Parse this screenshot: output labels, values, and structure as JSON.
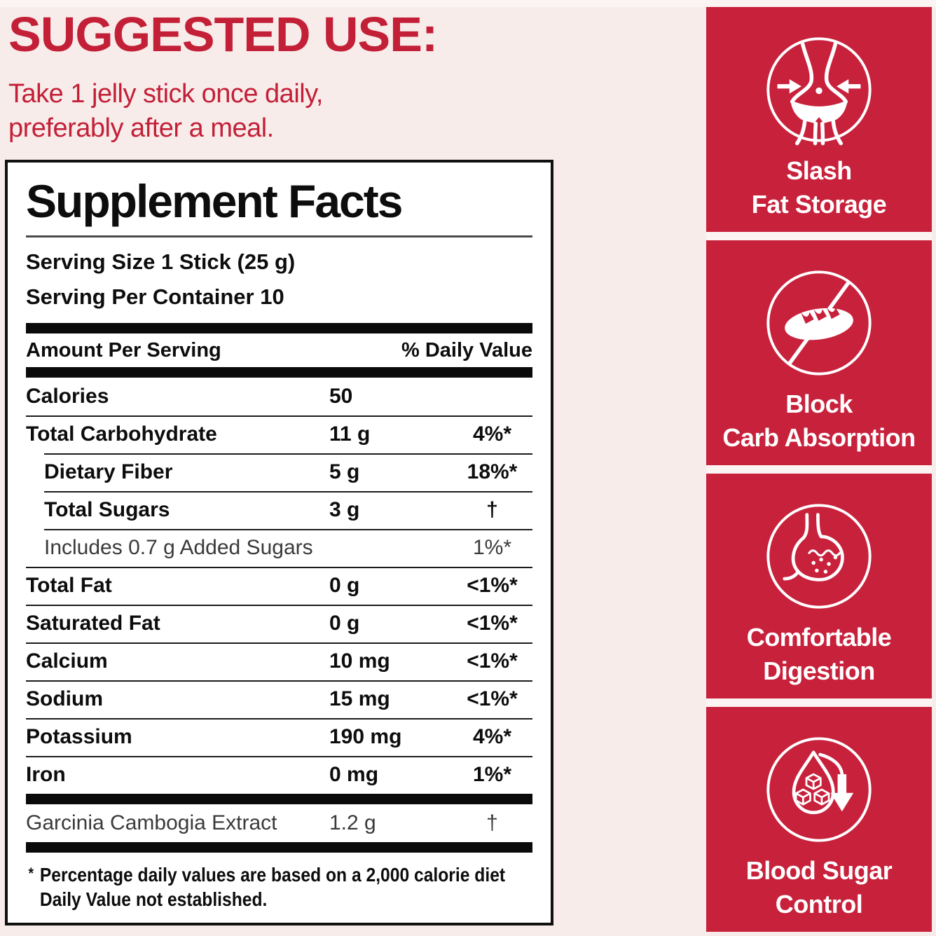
{
  "colors": {
    "badge_red": "#C8213C",
    "text_red": "#C32038",
    "page_pink": "#F8ECEA",
    "gap_white": "#FBF4F2"
  },
  "suggested_use": {
    "heading": "SUGGESTED USE:",
    "body_line1": "Take 1 jelly stick once daily,",
    "body_line2": "preferably after a meal."
  },
  "supplement_facts": {
    "title": "Supplement Facts",
    "serving_size": "Serving Size 1 Stick (25 g)",
    "servings_per_container": "Serving Per Container 10",
    "header": {
      "amount": "Amount Per Serving",
      "daily_value": "% Daily Value"
    },
    "rows": [
      {
        "name": "Calories",
        "amount": "50",
        "dv": ""
      },
      {
        "name": "Total Carbohydrate",
        "amount": "11 g",
        "dv": "4%*"
      },
      {
        "name": "Dietary Fiber",
        "amount": "5 g",
        "dv": "18%*",
        "indent": true
      },
      {
        "name": "Total Sugars",
        "amount": "3 g",
        "dv": "†",
        "indent": true
      },
      {
        "name": "Includes 0.7 g Added Sugars",
        "amount": "",
        "dv": "1%*",
        "indent": true,
        "light": true
      },
      {
        "name": "Total Fat",
        "amount": "0 g",
        "dv": "<1%*"
      },
      {
        "name": "Saturated Fat",
        "amount": "0 g",
        "dv": "<1%*"
      },
      {
        "name": "Calcium",
        "amount": "10 mg",
        "dv": "<1%*"
      },
      {
        "name": "Sodium",
        "amount": "15 mg",
        "dv": "<1%*"
      },
      {
        "name": "Potassium",
        "amount": "190 mg",
        "dv": "4%*"
      },
      {
        "name": "Iron",
        "amount": "0 mg",
        "dv": "1%*"
      }
    ],
    "extra_row": {
      "name": "Garcinia Cambogia Extract",
      "amount": "1.2 g",
      "dv": "†"
    },
    "footnote_marker": "*",
    "footnote_line1": "Percentage daily values are based on a 2,000 calorie diet",
    "footnote_line2": "Daily Value not established."
  },
  "benefits": [
    {
      "icon": "slim-waist-icon",
      "line1": "Slash",
      "line2": "Fat Storage"
    },
    {
      "icon": "no-bread-icon",
      "line1": "Block",
      "line2": "Carb Absorption"
    },
    {
      "icon": "stomach-icon",
      "line1": "Comfortable",
      "line2": "Digestion"
    },
    {
      "icon": "blood-sugar-drop-icon",
      "line1": "Blood Sugar",
      "line2": "Control"
    }
  ]
}
